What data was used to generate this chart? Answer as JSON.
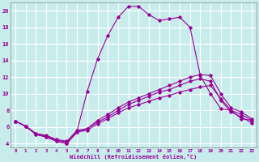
{
  "xlabel": "Windchill (Refroidissement éolien,°C)",
  "background_color": "#c8ecec",
  "grid_color": "#ffffff",
  "line_color": "#990099",
  "xlim": [
    -0.5,
    23.5
  ],
  "ylim": [
    3.5,
    21.0
  ],
  "yticks": [
    4,
    6,
    8,
    10,
    12,
    14,
    16,
    18,
    20
  ],
  "xticks": [
    0,
    1,
    2,
    3,
    4,
    5,
    6,
    7,
    8,
    9,
    10,
    11,
    12,
    13,
    14,
    15,
    16,
    17,
    18,
    19,
    20,
    21,
    22,
    23
  ],
  "series": [
    [
      6.7,
      6.1,
      5.1,
      4.8,
      4.3,
      4.0,
      5.4,
      5.6,
      6.4,
      7.0,
      7.7,
      8.3,
      8.7,
      9.1,
      9.5,
      9.8,
      10.2,
      10.5,
      10.8,
      11.0,
      9.4,
      8.0,
      7.5,
      6.8
    ],
    [
      6.7,
      6.1,
      5.1,
      4.8,
      4.3,
      4.0,
      5.4,
      5.8,
      6.6,
      7.2,
      8.0,
      8.7,
      9.2,
      9.7,
      10.2,
      10.5,
      11.0,
      11.5,
      11.8,
      11.5,
      9.2,
      7.8,
      7.2,
      6.5
    ],
    [
      6.7,
      6.1,
      5.2,
      4.9,
      4.4,
      4.2,
      5.6,
      5.8,
      6.8,
      7.5,
      8.3,
      9.0,
      9.5,
      10.0,
      10.5,
      11.0,
      11.5,
      12.0,
      12.3,
      12.2,
      10.0,
      8.3,
      7.8,
      7.0
    ],
    [
      6.7,
      6.1,
      5.2,
      5.0,
      4.5,
      4.3,
      5.5,
      10.3,
      14.2,
      17.0,
      19.2,
      20.5,
      20.5,
      19.5,
      18.8,
      19.0,
      19.2,
      18.0,
      12.2,
      10.0,
      8.2,
      8.0,
      7.0,
      6.8
    ]
  ]
}
